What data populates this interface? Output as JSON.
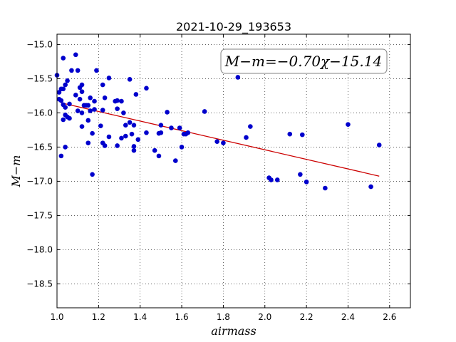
{
  "chart_data": {
    "type": "scatter",
    "title": "2021-10-29_193653",
    "xlabel": "airmass",
    "ylabel": "M−m",
    "annotation": "M−m=−0.70χ−15.14",
    "xlim": [
      1.0,
      2.7
    ],
    "ylim": [
      -18.85,
      -14.85
    ],
    "y_inverted": true,
    "grid": true,
    "xticks": [
      1.0,
      1.2,
      1.4,
      1.6,
      1.8,
      2.0,
      2.2,
      2.4,
      2.6
    ],
    "xtick_labels": [
      "1.0",
      "1.2",
      "1.4",
      "1.6",
      "1.8",
      "2.0",
      "2.2",
      "2.4",
      "2.6"
    ],
    "yticks": [
      -15.0,
      -15.5,
      -16.0,
      -16.5,
      -17.0,
      -17.5,
      -18.0,
      -18.5
    ],
    "ytick_labels": [
      "−15.0",
      "−15.5",
      "−16.0",
      "−16.5",
      "−17.0",
      "−17.5",
      "−18.0",
      "−18.5"
    ],
    "points_color": "#0000cc",
    "fit_color": "#cc0000",
    "fit": {
      "slope": -0.7,
      "intercept": -15.14,
      "x_range": [
        1.02,
        2.55
      ]
    },
    "points": [
      [
        1.0,
        -15.45
      ],
      [
        1.01,
        -15.7
      ],
      [
        1.01,
        -15.8
      ],
      [
        1.02,
        -15.82
      ],
      [
        1.02,
        -15.65
      ],
      [
        1.02,
        -16.63
      ],
      [
        1.03,
        -15.2
      ],
      [
        1.03,
        -15.65
      ],
      [
        1.03,
        -15.88
      ],
      [
        1.03,
        -16.1
      ],
      [
        1.04,
        -15.59
      ],
      [
        1.04,
        -15.92
      ],
      [
        1.04,
        -16.03
      ],
      [
        1.04,
        -16.5
      ],
      [
        1.05,
        -15.53
      ],
      [
        1.05,
        -16.06
      ],
      [
        1.06,
        -15.87
      ],
      [
        1.06,
        -16.08
      ],
      [
        1.07,
        -15.38
      ],
      [
        1.09,
        -15.15
      ],
      [
        1.09,
        -15.74
      ],
      [
        1.1,
        -15.38
      ],
      [
        1.1,
        -15.97
      ],
      [
        1.11,
        -15.8
      ],
      [
        1.11,
        -15.63
      ],
      [
        1.12,
        -15.59
      ],
      [
        1.12,
        -15.69
      ],
      [
        1.12,
        -16.0
      ],
      [
        1.12,
        -16.2
      ],
      [
        1.13,
        -15.89
      ],
      [
        1.14,
        -15.89
      ],
      [
        1.15,
        -15.89
      ],
      [
        1.15,
        -16.11
      ],
      [
        1.15,
        -16.44
      ],
      [
        1.16,
        -15.78
      ],
      [
        1.16,
        -15.97
      ],
      [
        1.17,
        -16.3
      ],
      [
        1.17,
        -16.9
      ],
      [
        1.18,
        -15.83
      ],
      [
        1.18,
        -15.95
      ],
      [
        1.19,
        -15.38
      ],
      [
        1.21,
        -16.19
      ],
      [
        1.22,
        -15.59
      ],
      [
        1.22,
        -15.96
      ],
      [
        1.22,
        -16.44
      ],
      [
        1.23,
        -15.78
      ],
      [
        1.23,
        -16.48
      ],
      [
        1.25,
        -15.49
      ],
      [
        1.25,
        -16.35
      ],
      [
        1.28,
        -15.83
      ],
      [
        1.29,
        -15.82
      ],
      [
        1.29,
        -15.94
      ],
      [
        1.29,
        -16.48
      ],
      [
        1.31,
        -16.37
      ],
      [
        1.31,
        -15.83
      ],
      [
        1.32,
        -16.0
      ],
      [
        1.33,
        -16.18
      ],
      [
        1.33,
        -16.34
      ],
      [
        1.35,
        -15.51
      ],
      [
        1.35,
        -16.14
      ],
      [
        1.36,
        -16.31
      ],
      [
        1.37,
        -16.18
      ],
      [
        1.37,
        -16.49
      ],
      [
        1.37,
        -16.55
      ],
      [
        1.38,
        -15.73
      ],
      [
        1.39,
        -16.39
      ],
      [
        1.43,
        -15.64
      ],
      [
        1.43,
        -16.29
      ],
      [
        1.47,
        -16.55
      ],
      [
        1.49,
        -16.63
      ],
      [
        1.49,
        -16.3
      ],
      [
        1.5,
        -16.29
      ],
      [
        1.5,
        -16.18
      ],
      [
        1.53,
        -15.99
      ],
      [
        1.55,
        -16.22
      ],
      [
        1.57,
        -16.7
      ],
      [
        1.59,
        -16.22
      ],
      [
        1.6,
        -16.5
      ],
      [
        1.61,
        -16.31
      ],
      [
        1.62,
        -16.31
      ],
      [
        1.63,
        -16.29
      ],
      [
        1.71,
        -15.98
      ],
      [
        1.77,
        -16.42
      ],
      [
        1.8,
        -16.44
      ],
      [
        1.87,
        -15.48
      ],
      [
        1.91,
        -16.36
      ],
      [
        1.93,
        -16.2
      ],
      [
        2.02,
        -16.95
      ],
      [
        2.03,
        -16.98
      ],
      [
        2.06,
        -16.98
      ],
      [
        2.12,
        -16.31
      ],
      [
        2.17,
        -16.9
      ],
      [
        2.18,
        -16.32
      ],
      [
        2.2,
        -17.01
      ],
      [
        2.29,
        -17.1
      ],
      [
        2.4,
        -16.17
      ],
      [
        2.51,
        -17.08
      ],
      [
        2.55,
        -16.47
      ]
    ]
  }
}
